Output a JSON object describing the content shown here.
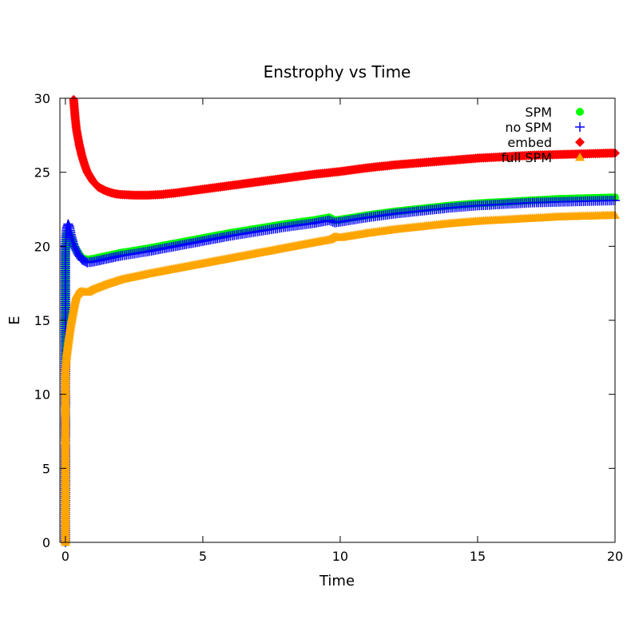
{
  "chart_data": {
    "type": "scatter",
    "title": "Enstrophy vs Time",
    "xlabel": "Time",
    "ylabel": "E",
    "xlim": [
      -0.2,
      20
    ],
    "ylim": [
      0,
      30
    ],
    "xticks": [
      0,
      5,
      10,
      15,
      20
    ],
    "yticks": [
      0,
      5,
      10,
      15,
      20,
      25,
      30
    ],
    "grid": false,
    "legend_position": "top-right",
    "series": [
      {
        "name": "SPM",
        "color": "#00ff00",
        "marker": "circle",
        "points": [
          [
            0,
            0
          ],
          [
            0,
            4.7
          ],
          [
            0,
            8.6
          ],
          [
            0,
            10.2
          ],
          [
            0,
            13.5
          ],
          [
            0,
            16.1
          ],
          [
            0,
            17.9
          ],
          [
            0,
            19.1
          ],
          [
            0.02,
            20.0
          ],
          [
            0.05,
            20.8
          ],
          [
            0.1,
            21.0
          ],
          [
            0.2,
            20.6
          ],
          [
            0.3,
            20.1
          ],
          [
            0.45,
            19.6
          ],
          [
            0.6,
            19.2
          ],
          [
            0.8,
            19.1
          ],
          [
            1.0,
            19.15
          ],
          [
            1.5,
            19.35
          ],
          [
            2,
            19.55
          ],
          [
            3,
            19.85
          ],
          [
            4,
            20.2
          ],
          [
            5,
            20.55
          ],
          [
            6,
            20.9
          ],
          [
            7,
            21.2
          ],
          [
            8,
            21.5
          ],
          [
            9,
            21.75
          ],
          [
            9.6,
            21.95
          ],
          [
            9.8,
            21.75
          ],
          [
            10,
            21.8
          ],
          [
            11,
            22.1
          ],
          [
            12,
            22.35
          ],
          [
            13,
            22.55
          ],
          [
            14,
            22.75
          ],
          [
            15,
            22.9
          ],
          [
            16,
            23.0
          ],
          [
            17,
            23.1
          ],
          [
            18,
            23.2
          ],
          [
            19,
            23.25
          ],
          [
            20,
            23.3
          ]
        ]
      },
      {
        "name": "no SPM",
        "color": "#0000ff",
        "marker": "plus",
        "points": [
          [
            0,
            0
          ],
          [
            0,
            4.7
          ],
          [
            0,
            8.6
          ],
          [
            0,
            10.2
          ],
          [
            0,
            13.8
          ],
          [
            0,
            16.4
          ],
          [
            0,
            18.5
          ],
          [
            0,
            19.8
          ],
          [
            0.02,
            20.6
          ],
          [
            0.05,
            21.2
          ],
          [
            0.1,
            21.5
          ],
          [
            0.15,
            21.3
          ],
          [
            0.2,
            20.8
          ],
          [
            0.3,
            20.1
          ],
          [
            0.45,
            19.5
          ],
          [
            0.6,
            19.1
          ],
          [
            0.8,
            18.9
          ],
          [
            1.0,
            18.95
          ],
          [
            1.5,
            19.15
          ],
          [
            2,
            19.35
          ],
          [
            3,
            19.65
          ],
          [
            4,
            20.0
          ],
          [
            5,
            20.35
          ],
          [
            6,
            20.7
          ],
          [
            7,
            21.0
          ],
          [
            8,
            21.3
          ],
          [
            9,
            21.55
          ],
          [
            9.6,
            21.75
          ],
          [
            9.8,
            21.6
          ],
          [
            10,
            21.65
          ],
          [
            11,
            21.95
          ],
          [
            12,
            22.2
          ],
          [
            13,
            22.4
          ],
          [
            14,
            22.6
          ],
          [
            15,
            22.75
          ],
          [
            16,
            22.85
          ],
          [
            17,
            22.95
          ],
          [
            18,
            23.0
          ],
          [
            19,
            23.05
          ],
          [
            20,
            23.1
          ]
        ]
      },
      {
        "name": "embed",
        "color": "#ff0000",
        "marker": "diamond",
        "points": [
          [
            0.3,
            29.9
          ],
          [
            0.35,
            28.8
          ],
          [
            0.4,
            27.9
          ],
          [
            0.5,
            26.9
          ],
          [
            0.6,
            26.1
          ],
          [
            0.7,
            25.5
          ],
          [
            0.8,
            25.0
          ],
          [
            0.9,
            24.7
          ],
          [
            1.0,
            24.4
          ],
          [
            1.2,
            24.0
          ],
          [
            1.4,
            23.8
          ],
          [
            1.6,
            23.65
          ],
          [
            1.8,
            23.55
          ],
          [
            2.0,
            23.5
          ],
          [
            2.5,
            23.45
          ],
          [
            3.0,
            23.45
          ],
          [
            3.5,
            23.5
          ],
          [
            4,
            23.6
          ],
          [
            5,
            23.85
          ],
          [
            6,
            24.1
          ],
          [
            7,
            24.35
          ],
          [
            8,
            24.6
          ],
          [
            9,
            24.85
          ],
          [
            10,
            25.05
          ],
          [
            11,
            25.3
          ],
          [
            12,
            25.5
          ],
          [
            13,
            25.65
          ],
          [
            14,
            25.8
          ],
          [
            15,
            25.95
          ],
          [
            16,
            26.05
          ],
          [
            17,
            26.15
          ],
          [
            18,
            26.2
          ],
          [
            19,
            26.25
          ],
          [
            20,
            26.3
          ]
        ]
      },
      {
        "name": "full SPM",
        "color": "#ffa500",
        "marker": "triangle",
        "points": [
          [
            0,
            0
          ],
          [
            0,
            2.6
          ],
          [
            0,
            5.8
          ],
          [
            0,
            6.7
          ],
          [
            0,
            7.4
          ],
          [
            0,
            8.6
          ],
          [
            0,
            9.2
          ],
          [
            0,
            10.3
          ],
          [
            0,
            11.7
          ],
          [
            0.05,
            12.8
          ],
          [
            0.1,
            13.5
          ],
          [
            0.15,
            14.2
          ],
          [
            0.2,
            14.8
          ],
          [
            0.25,
            15.3
          ],
          [
            0.3,
            15.8
          ],
          [
            0.35,
            16.3
          ],
          [
            0.4,
            16.7
          ],
          [
            0.5,
            16.9
          ],
          [
            0.6,
            16.95
          ],
          [
            0.8,
            16.9
          ],
          [
            1.0,
            17.1
          ],
          [
            1.5,
            17.45
          ],
          [
            2,
            17.75
          ],
          [
            3,
            18.15
          ],
          [
            4,
            18.5
          ],
          [
            5,
            18.85
          ],
          [
            6,
            19.2
          ],
          [
            7,
            19.55
          ],
          [
            8,
            19.9
          ],
          [
            9,
            20.25
          ],
          [
            9.6,
            20.45
          ],
          [
            9.8,
            20.65
          ],
          [
            10,
            20.6
          ],
          [
            11,
            20.9
          ],
          [
            12,
            21.15
          ],
          [
            13,
            21.35
          ],
          [
            14,
            21.55
          ],
          [
            15,
            21.7
          ],
          [
            16,
            21.8
          ],
          [
            17,
            21.9
          ],
          [
            18,
            22.0
          ],
          [
            19,
            22.05
          ],
          [
            20,
            22.1
          ]
        ]
      }
    ]
  }
}
